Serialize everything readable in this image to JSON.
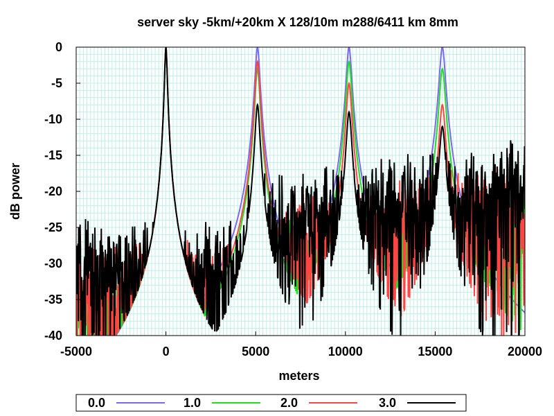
{
  "chart_data": {
    "type": "line",
    "title": "server sky -5km/+20km X 128/10m  m288/6411 km 8mm",
    "xlabel": "meters",
    "ylabel": "dB power",
    "xlim": [
      -5000,
      20000
    ],
    "ylim": [
      -40,
      0
    ],
    "x_ticks": [
      "-5000",
      "0",
      "5000",
      "10000",
      "15000",
      "20000"
    ],
    "y_ticks": [
      "0",
      "-5",
      "-10",
      "-15",
      "-20",
      "-25",
      "-30",
      "-35",
      "-40"
    ],
    "grid": true,
    "legend_position": "bottom",
    "peaks_x": [
      0,
      5100,
      10200,
      15400
    ],
    "series": [
      {
        "name": "0.0",
        "color": "#7b68ee",
        "peak_db": [
          0,
          0,
          0,
          0
        ],
        "noise_floor_db": -45,
        "roughness": 0
      },
      {
        "name": "1.0",
        "color": "#22dd22",
        "peak_db": [
          0,
          -3,
          -2,
          -3
        ],
        "noise_floor_db": -30,
        "roughness": 7
      },
      {
        "name": "2.0",
        "color": "#ff4444",
        "peak_db": [
          0,
          -2,
          -5,
          -8
        ],
        "noise_floor_db": -27,
        "roughness": 7
      },
      {
        "name": "3.0",
        "color": "#000000",
        "peak_db": [
          0,
          -8,
          -9,
          -11
        ],
        "noise_floor_db": -24,
        "roughness": 7
      }
    ]
  }
}
